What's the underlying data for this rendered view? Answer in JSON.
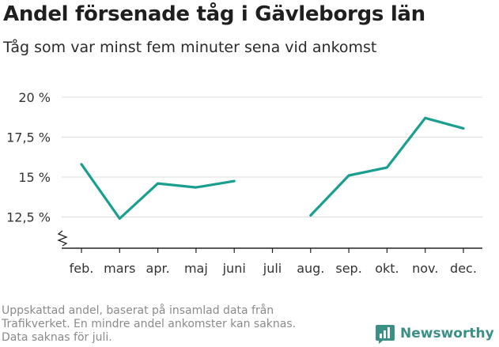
{
  "title": "Andel försenade tåg i Gävleborgs län",
  "subtitle": "Tåg som var minst fem minuter sena vid ankomst",
  "footer": {
    "line1": "Uppskattad andel, baserat på insamlad data från",
    "line2": "Trafikverket. En mindre andel ankomster kan saknas.",
    "line3": "Data saknas för juli."
  },
  "brand": {
    "name": "Newsworthy",
    "icon": "newsworthy-logo-icon"
  },
  "colors": {
    "line": "#1a9e8f",
    "grid": "#dcdcdc",
    "axis": "#222222",
    "brand": "#3a8f87"
  },
  "chart_data": {
    "type": "line",
    "categories": [
      "feb.",
      "mars",
      "apr.",
      "maj",
      "juni",
      "juli",
      "aug.",
      "sep.",
      "okt.",
      "nov.",
      "dec."
    ],
    "series": [
      {
        "values": [
          15.8,
          12.4,
          14.6,
          14.35,
          14.75,
          null,
          12.6,
          15.1,
          15.6,
          18.7,
          18.05
        ]
      }
    ],
    "ylim": [
      11.5,
      20
    ],
    "yticks": [
      12.5,
      15,
      17.5,
      20
    ],
    "ytick_labels": [
      "12,5 %",
      "15 %",
      "17,5 %",
      "20 %"
    ],
    "axis_break": true,
    "grid": true
  }
}
